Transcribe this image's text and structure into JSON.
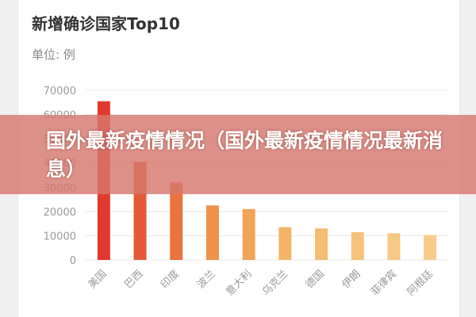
{
  "banner": {
    "text": "国外最新疫情情况（国外最新疫情情况最新消息）"
  },
  "chart_data": {
    "type": "bar",
    "title": "新增确诊国家Top10",
    "subtitle": "单位: 例",
    "categories": [
      "美国",
      "巴西",
      "印度",
      "波兰",
      "意大利",
      "乌克兰",
      "德国",
      "伊朗",
      "菲律宾",
      "阿根廷"
    ],
    "values": [
      65500,
      40500,
      32000,
      22500,
      21000,
      13500,
      13000,
      11500,
      11000,
      10300
    ],
    "colors": [
      "#e03a2e",
      "#e45a36",
      "#e9743d",
      "#ef9149",
      "#f1a356",
      "#f4b466",
      "#f5bc72",
      "#f6c27b",
      "#f7c784",
      "#f8cb8c"
    ],
    "yticks": [
      0,
      10000,
      20000,
      30000,
      40000,
      50000,
      60000,
      70000
    ],
    "ylim": [
      0,
      70000
    ],
    "grid": true
  }
}
